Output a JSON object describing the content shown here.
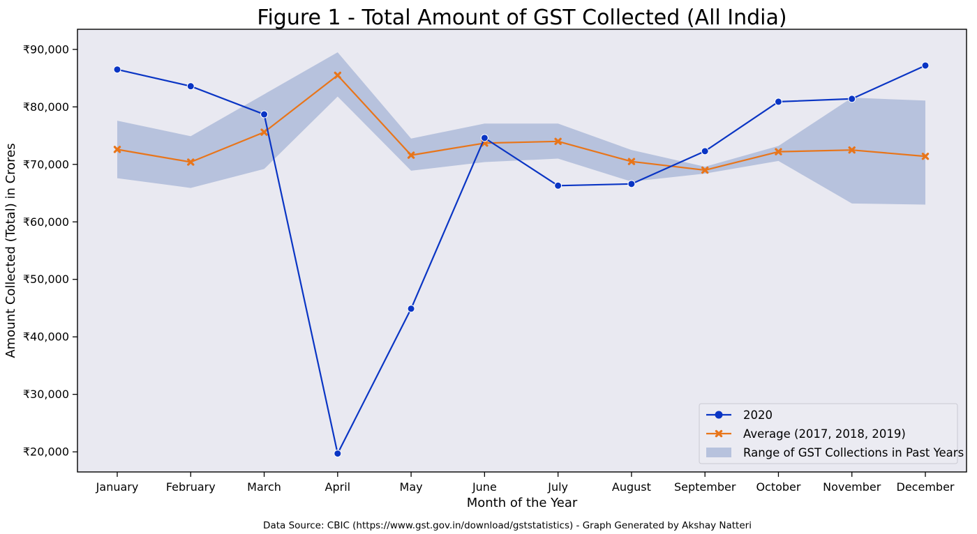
{
  "chart_data": {
    "type": "line",
    "title": "Figure 1 - Total Amount of GST Collected (All India)",
    "xlabel": "Month of the Year",
    "ylabel": "Amount Collected (Total) in Crores",
    "categories": [
      "January",
      "February",
      "March",
      "April",
      "May",
      "June",
      "July",
      "August",
      "September",
      "October",
      "November",
      "December"
    ],
    "ylim": [
      16500,
      93500
    ],
    "yticks": [
      20000,
      30000,
      40000,
      50000,
      60000,
      70000,
      80000,
      90000
    ],
    "ytick_labels": [
      "₹20,000",
      "₹30,000",
      "₹40,000",
      "₹50,000",
      "₹60,000",
      "₹70,000",
      "₹80,000",
      "₹90,000"
    ],
    "series": [
      {
        "name": "2020",
        "color": "#0a35c4",
        "marker": "circle",
        "values": [
          86500,
          83600,
          78700,
          19700,
          44900,
          74600,
          66300,
          66600,
          72300,
          80900,
          81400,
          87200
        ]
      },
      {
        "name": "Average (2017, 2018, 2019)",
        "color": "#e8751a",
        "marker": "x",
        "values": [
          72600,
          70400,
          75600,
          85500,
          71600,
          73700,
          74000,
          70500,
          69000,
          72200,
          72500,
          71400
        ]
      }
    ],
    "range_band": {
      "name": "Range of GST Collections in Past Years",
      "color": "#b7c2dd",
      "lower": [
        67600,
        65900,
        69200,
        81800,
        68900,
        70400,
        71000,
        67000,
        68400,
        70600,
        63200,
        63000
      ],
      "upper": [
        77600,
        74900,
        82200,
        89500,
        74500,
        77100,
        77100,
        72500,
        69600,
        73200,
        81600,
        81100
      ]
    },
    "legend_position": "lower-right",
    "plot_background": "#e9e9f1",
    "grid": false,
    "footnote": "Data Source: CBIC (https://www.gst.gov.in/download/gststatistics) - Graph Generated by Akshay Natteri"
  }
}
